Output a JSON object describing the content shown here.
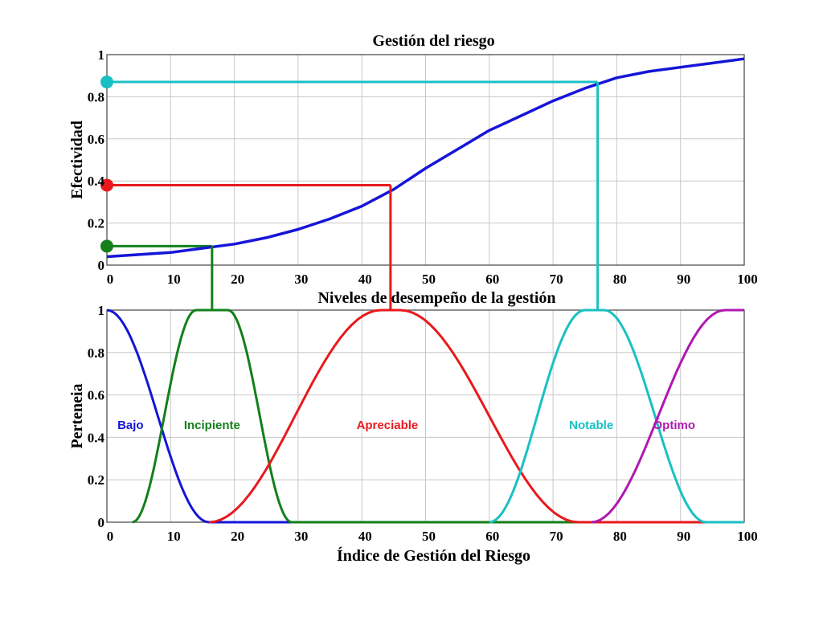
{
  "chart_data": [
    {
      "type": "line",
      "title": "Gestión del riesgo",
      "xlabel": "Niveles de desempeño de la gestión",
      "ylabel": "Efectividad",
      "xlim": [
        0,
        100
      ],
      "ylim": [
        0,
        1
      ],
      "grid": true,
      "xticks": [
        "0",
        "10",
        "20",
        "30",
        "40",
        "50",
        "60",
        "70",
        "80",
        "90",
        "100"
      ],
      "yticks": [
        "0",
        "0.2",
        "0.4",
        "0.6",
        "0.8",
        "1"
      ],
      "series": [
        {
          "name": "Efectividad",
          "color": "#1515d8",
          "x": [
            0,
            5,
            10,
            15,
            20,
            25,
            30,
            35,
            40,
            45,
            50,
            55,
            60,
            65,
            70,
            75,
            80,
            85,
            90,
            95,
            100
          ],
          "y": [
            0.04,
            0.05,
            0.06,
            0.08,
            0.1,
            0.13,
            0.17,
            0.22,
            0.28,
            0.36,
            0.46,
            0.55,
            0.64,
            0.71,
            0.78,
            0.84,
            0.89,
            0.92,
            0.94,
            0.96,
            0.98
          ]
        }
      ],
      "markers": [
        {
          "color": "#13801a",
          "x": 16.5,
          "y": 0.09
        },
        {
          "color": "#e8191d",
          "x": 44.5,
          "y": 0.38
        },
        {
          "color": "#19c0c3",
          "x": 77,
          "y": 0.87
        }
      ]
    },
    {
      "type": "line",
      "title": "",
      "xlabel": "Índice de Gestión del Riesgo",
      "ylabel": "Perteneia",
      "xlim": [
        0,
        100
      ],
      "ylim": [
        0,
        1
      ],
      "grid": true,
      "xticks": [
        "0",
        "10",
        "20",
        "30",
        "40",
        "50",
        "60",
        "70",
        "80",
        "90",
        "100"
      ],
      "yticks": [
        "0",
        "0.2",
        "0.4",
        "0.6",
        "0.8",
        "1"
      ],
      "series": [
        {
          "name": "Bajo",
          "color": "#1515d8",
          "label_x": 3.7,
          "label_y": 0.44,
          "x": [
            0,
            0,
            16,
            100
          ],
          "y": [
            1,
            1,
            0,
            0
          ]
        },
        {
          "name": "Incipiente",
          "color": "#13801a",
          "label_x": 16.5,
          "label_y": 0.44,
          "x": [
            4,
            14,
            19,
            29,
            100
          ],
          "y": [
            0,
            1,
            1,
            0,
            0
          ]
        },
        {
          "name": "Apreciable",
          "color": "#e8191d",
          "label_x": 44,
          "label_y": 0.44,
          "x": [
            16,
            43,
            46,
            74,
            100
          ],
          "y": [
            0,
            1,
            1,
            0,
            0
          ]
        },
        {
          "name": "Notable",
          "color": "#19c0c3",
          "label_x": 76,
          "label_y": 0.44,
          "x": [
            60,
            75,
            78,
            94,
            100
          ],
          "y": [
            0,
            1,
            1,
            0,
            0
          ]
        },
        {
          "name": "Óptimo",
          "color": "#b018b0",
          "label_x": 89,
          "label_y": 0.44,
          "x": [
            76,
            97,
            100
          ],
          "y": [
            0,
            1,
            1
          ]
        }
      ]
    }
  ]
}
